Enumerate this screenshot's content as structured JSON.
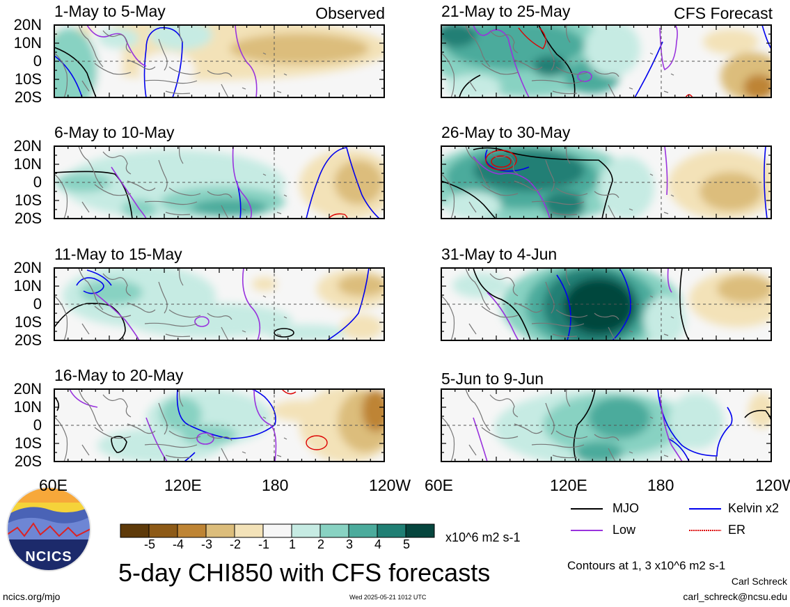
{
  "panels": [
    {
      "title": "1-May to 5-May",
      "tag": "Observed"
    },
    {
      "title": "21-May to 25-May",
      "tag": "CFS Forecast"
    },
    {
      "title": "6-May to 10-May",
      "tag": ""
    },
    {
      "title": "26-May to 30-May",
      "tag": ""
    },
    {
      "title": "11-May to 15-May",
      "tag": ""
    },
    {
      "title": "31-May to 4-Jun",
      "tag": ""
    },
    {
      "title": "16-May to 20-May",
      "tag": ""
    },
    {
      "title": "5-Jun to 9-Jun",
      "tag": ""
    }
  ],
  "lat_labels": [
    "20N",
    "10N",
    "0",
    "10S",
    "20S"
  ],
  "lon_labels": [
    "60E",
    "120E",
    "180",
    "120W"
  ],
  "colorbar": {
    "labels": [
      "-5",
      "-4",
      "-3",
      "-2",
      "-1",
      "1",
      "2",
      "3",
      "4",
      "5"
    ],
    "colors": [
      "#5e3a0a",
      "#8d5a17",
      "#be8434",
      "#dcbd7b",
      "#f3e2b8",
      "#f6f6f6",
      "#c6ebe3",
      "#88d2c2",
      "#4bab9c",
      "#207f74",
      "#06463e"
    ],
    "units": "x10^6 m2 s-1"
  },
  "legend": [
    {
      "label": "MJO",
      "color": "#000000",
      "style": "solid"
    },
    {
      "label": "Kelvin x2",
      "color": "#0000ee",
      "style": "solid"
    },
    {
      "label": "Low",
      "color": "#9933dd",
      "style": "solid"
    },
    {
      "label": "ER",
      "color": "#dd0000",
      "style": "dotted"
    }
  ],
  "main_title": "5-day CHI850 with CFS forecasts",
  "contour_note": "Contours at 1, 3 x10^6 m2 s-1",
  "author": "Carl Schreck",
  "email": "carl_schreck@ncsu.edu",
  "site": "ncics.org/mjo",
  "timestamp": "Wed 2025-05-21 1012 UTC",
  "logo_text": "NCICS",
  "colors": {
    "land_outline": "#777777",
    "frame": "#000000"
  }
}
